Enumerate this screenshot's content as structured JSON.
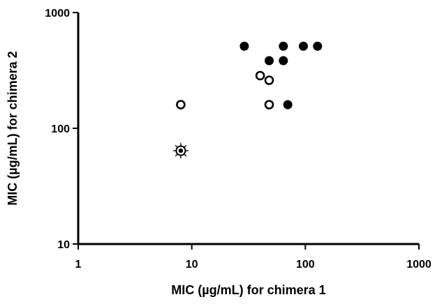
{
  "chart_data": {
    "type": "scatter",
    "title": "",
    "xlabel": "MIC (µg/mL) for chimera 1",
    "ylabel": "MIC (µg/mL) for chimera 2",
    "xscale": "log",
    "yscale": "log",
    "xlim": [
      1,
      1000
    ],
    "ylim": [
      10,
      1000
    ],
    "x_ticks": [
      1,
      10,
      100,
      1000
    ],
    "x_tick_labels": [
      "1",
      "10",
      "100",
      "1000"
    ],
    "y_ticks": [
      10,
      100,
      1000
    ],
    "y_tick_labels": [
      "10",
      "100",
      "1000"
    ],
    "grid": false,
    "legend": "none",
    "series": [
      {
        "marker": "filled-circle",
        "color": "#000000",
        "points": [
          {
            "x": 29,
            "y": 512
          },
          {
            "x": 64,
            "y": 512
          },
          {
            "x": 96,
            "y": 512
          },
          {
            "x": 128,
            "y": 512
          },
          {
            "x": 48,
            "y": 384
          },
          {
            "x": 64,
            "y": 384
          },
          {
            "x": 70,
            "y": 160
          }
        ]
      },
      {
        "marker": "open-circle",
        "color": "#000000",
        "points": [
          {
            "x": 40,
            "y": 285
          },
          {
            "x": 48,
            "y": 260
          },
          {
            "x": 8,
            "y": 160
          },
          {
            "x": 48,
            "y": 160
          }
        ]
      },
      {
        "marker": "starred-circle",
        "color": "#000000",
        "points": [
          {
            "x": 8,
            "y": 64
          }
        ]
      }
    ]
  }
}
